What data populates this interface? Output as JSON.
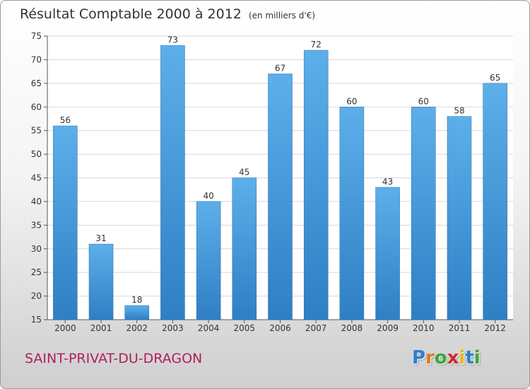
{
  "title": "Résultat Comptable 2000 à 2012",
  "unit": "(en milliers d'€)",
  "commune": "SAINT-PRIVAT-DU-DRAGON",
  "logo": {
    "letters": [
      "P",
      "r",
      "o",
      "x",
      "i",
      "t",
      "i"
    ],
    "colors": [
      "#2a7fd0",
      "#e0781c",
      "#3aa83a",
      "#d02b2b",
      "#e0b81c",
      "#2a7fd0",
      "#3aa83a"
    ]
  },
  "colors": {
    "bar_light": "#5dafea",
    "bar_dark": "#2e7fc4",
    "commune": "#b0205c"
  },
  "chart_data": {
    "type": "bar",
    "categories": [
      "2000",
      "2001",
      "2002",
      "2003",
      "2004",
      "2005",
      "2006",
      "2007",
      "2008",
      "2009",
      "2010",
      "2011",
      "2012"
    ],
    "values": [
      56,
      31,
      18,
      73,
      40,
      45,
      67,
      72,
      60,
      43,
      60,
      58,
      65
    ],
    "yticks": [
      15,
      20,
      25,
      30,
      35,
      40,
      45,
      50,
      55,
      60,
      65,
      70,
      75
    ],
    "ylim": [
      15,
      75
    ],
    "grid": true
  }
}
